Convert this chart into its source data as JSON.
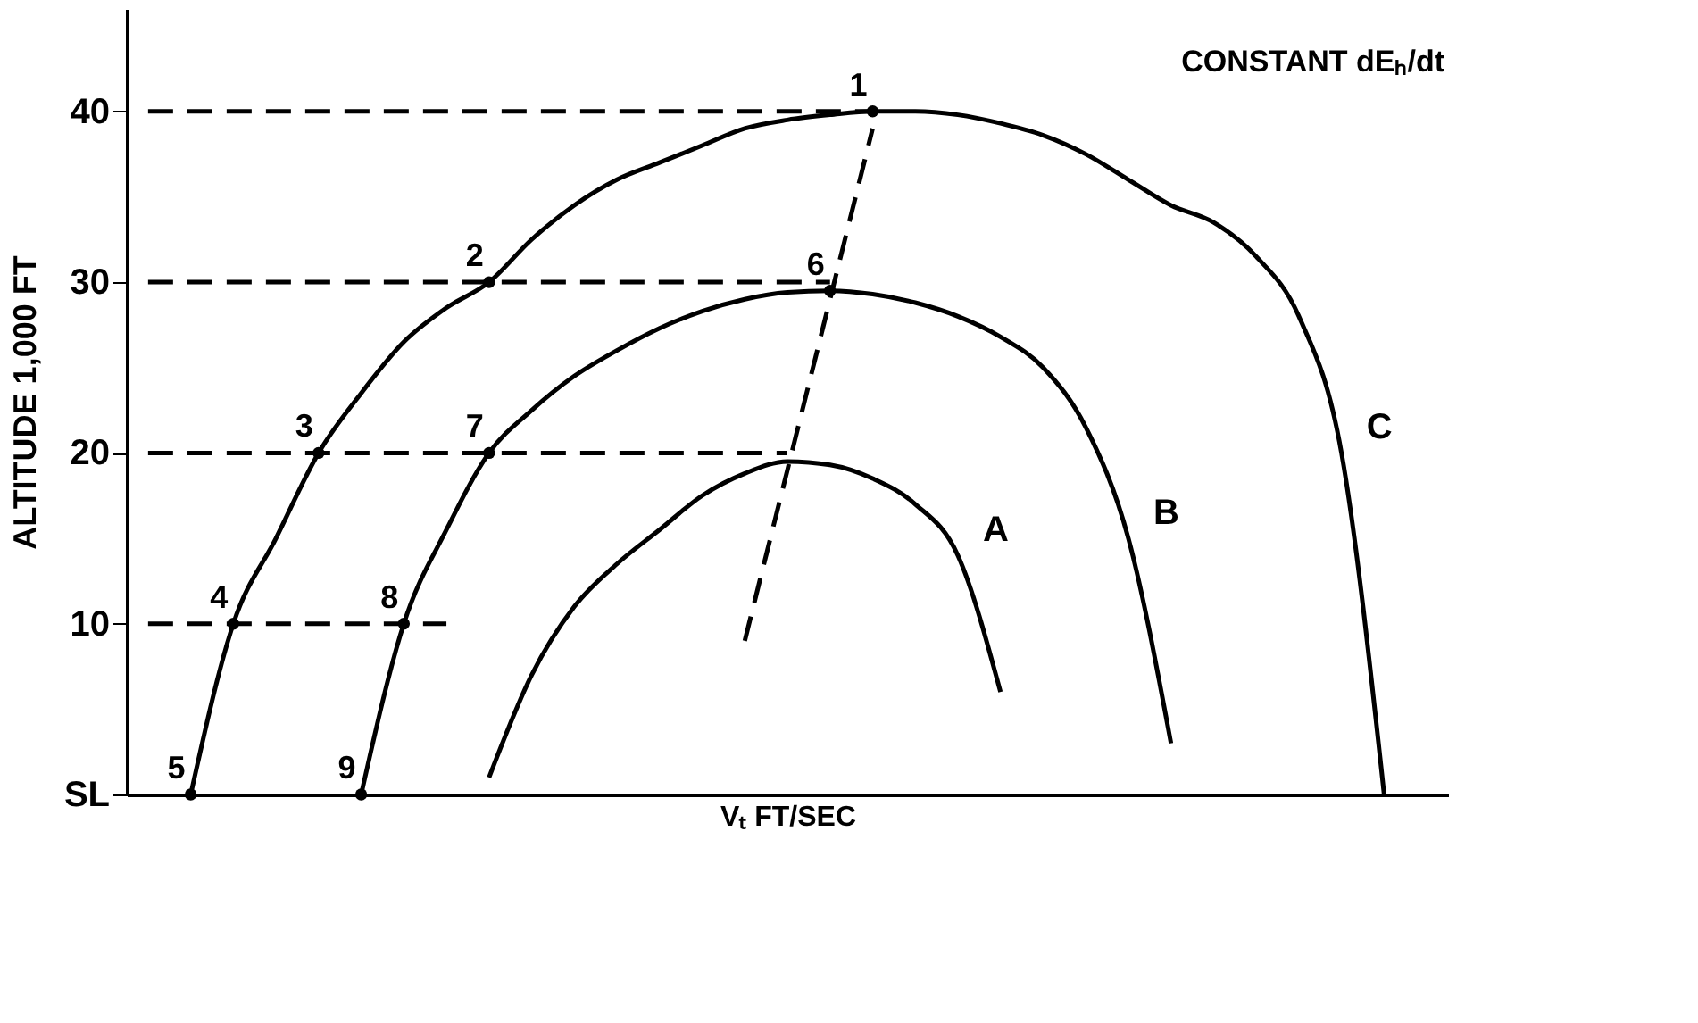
{
  "chart_data": {
    "type": "line",
    "xlabel": "Vₜ FT/SEC",
    "ylabel": "ALTITUDE 1,000 FT",
    "categories": [
      null,
      null,
      null,
      null,
      null,
      null,
      null,
      null,
      null,
      null,
      null,
      null,
      null,
      null,
      null,
      null,
      null,
      null,
      null,
      null,
      null,
      null,
      null,
      null,
      null,
      null,
      null,
      null,
      null,
      null,
      null
    ],
    "ylim": [
      0,
      46
    ],
    "yticks": [
      {
        "value": 0,
        "label": "SL"
      },
      10,
      20,
      30,
      40
    ],
    "grid": false,
    "legend": false,
    "marker": "none",
    "line_style": "solid",
    "annotations": [
      "CONSTANT dEₕ/dt"
    ],
    "series": [
      {
        "name": "A",
        "color": "#000000",
        "values": [
          null,
          null,
          null,
          null,
          null,
          null,
          null,
          null,
          1,
          7,
          11,
          13.5,
          15.5,
          17.5,
          18.8,
          19.5,
          19.3,
          18.5,
          17,
          14,
          6,
          null,
          null,
          null,
          null,
          null,
          null,
          null,
          null,
          null,
          null
        ]
      },
      {
        "name": "B",
        "color": "#000000",
        "values": [
          null,
          null,
          null,
          null,
          null,
          0,
          10,
          15.5,
          20,
          22.5,
          24.5,
          26,
          27.3,
          28.3,
          29,
          29.4,
          29.5,
          29.3,
          28.8,
          28,
          26.8,
          25,
          21.5,
          15,
          3,
          null,
          null,
          null,
          null,
          null,
          null
        ]
      },
      {
        "name": "C",
        "color": "#000000",
        "values": [
          null,
          0,
          10,
          15,
          20,
          23.5,
          26.5,
          28.5,
          30,
          32.5,
          34.5,
          36,
          37,
          38,
          39,
          39.5,
          39.8,
          40,
          40,
          39.8,
          39.3,
          38.6,
          37.5,
          36,
          34.5,
          33.5,
          31.5,
          28,
          20,
          0,
          null
        ]
      },
      {
        "line_style": "dashed",
        "color": "#000000",
        "values": [
          40,
          40,
          40,
          40,
          40,
          40,
          40,
          40,
          40,
          40,
          40,
          40,
          40,
          40,
          40,
          40,
          40,
          40,
          null,
          null,
          null,
          null,
          null,
          null,
          null,
          null,
          null,
          null,
          null,
          null,
          null
        ]
      },
      {
        "line_style": "dashed",
        "color": "#000000",
        "values": [
          30,
          30,
          30,
          30,
          30,
          30,
          30,
          30,
          30,
          30,
          30,
          30,
          30,
          30,
          30,
          30,
          30,
          null,
          null,
          null,
          null,
          null,
          null,
          null,
          null,
          null,
          null,
          null,
          null,
          null,
          null
        ]
      },
      {
        "line_style": "dashed",
        "color": "#000000",
        "values": [
          20,
          20,
          20,
          20,
          20,
          20,
          20,
          20,
          20,
          20,
          20,
          20,
          20,
          20,
          20,
          20,
          null,
          null,
          null,
          null,
          null,
          null,
          null,
          null,
          null,
          null,
          null,
          null,
          null,
          null,
          null
        ]
      },
      {
        "line_style": "dashed",
        "color": "#000000",
        "values": [
          10,
          10,
          10,
          10,
          10,
          10,
          10,
          10,
          null,
          null,
          null,
          null,
          null,
          null,
          null,
          null,
          null,
          null,
          null,
          null,
          null,
          null,
          null,
          null,
          null,
          null,
          null,
          null,
          null,
          null,
          null
        ]
      },
      {
        "line_style": "dashed",
        "color": "#000000",
        "values": [
          null,
          null,
          null,
          null,
          null,
          null,
          null,
          null,
          null,
          null,
          null,
          null,
          null,
          null,
          9,
          19,
          29,
          39,
          null,
          null,
          null,
          null,
          null,
          null,
          null,
          null,
          null,
          null,
          null,
          null,
          null
        ]
      },
      {
        "type": "scatter",
        "marker": "circle",
        "name": "1",
        "color": "#000000",
        "values": [
          null,
          null,
          null,
          null,
          null,
          null,
          null,
          null,
          null,
          null,
          null,
          null,
          null,
          null,
          null,
          null,
          null,
          40,
          null,
          null,
          null,
          null,
          null,
          null,
          null,
          null,
          null,
          null,
          null,
          null,
          null
        ]
      },
      {
        "type": "scatter",
        "marker": "circle",
        "name": "2",
        "color": "#000000",
        "values": [
          null,
          null,
          null,
          null,
          null,
          null,
          null,
          null,
          30,
          null,
          null,
          null,
          null,
          null,
          null,
          null,
          null,
          null,
          null,
          null,
          null,
          null,
          null,
          null,
          null,
          null,
          null,
          null,
          null,
          null,
          null
        ]
      },
      {
        "type": "scatter",
        "marker": "circle",
        "name": "3",
        "color": "#000000",
        "values": [
          null,
          null,
          null,
          null,
          20,
          null,
          null,
          null,
          null,
          null,
          null,
          null,
          null,
          null,
          null,
          null,
          null,
          null,
          null,
          null,
          null,
          null,
          null,
          null,
          null,
          null,
          null,
          null,
          null,
          null,
          null
        ]
      },
      {
        "type": "scatter",
        "marker": "circle",
        "name": "4",
        "color": "#000000",
        "values": [
          null,
          null,
          10,
          null,
          null,
          null,
          null,
          null,
          null,
          null,
          null,
          null,
          null,
          null,
          null,
          null,
          null,
          null,
          null,
          null,
          null,
          null,
          null,
          null,
          null,
          null,
          null,
          null,
          null,
          null,
          null
        ]
      },
      {
        "type": "scatter",
        "marker": "circle",
        "name": "5",
        "color": "#000000",
        "values": [
          null,
          0,
          null,
          null,
          null,
          null,
          null,
          null,
          null,
          null,
          null,
          null,
          null,
          null,
          null,
          null,
          null,
          null,
          null,
          null,
          null,
          null,
          null,
          null,
          null,
          null,
          null,
          null,
          null,
          null,
          null
        ]
      },
      {
        "type": "scatter",
        "marker": "circle",
        "name": "6",
        "color": "#000000",
        "values": [
          null,
          null,
          null,
          null,
          null,
          null,
          null,
          null,
          null,
          null,
          null,
          null,
          null,
          null,
          null,
          null,
          29.5,
          null,
          null,
          null,
          null,
          null,
          null,
          null,
          null,
          null,
          null,
          null,
          null,
          null,
          null
        ]
      },
      {
        "type": "scatter",
        "marker": "circle",
        "name": "7",
        "color": "#000000",
        "values": [
          null,
          null,
          null,
          null,
          null,
          null,
          null,
          null,
          20,
          null,
          null,
          null,
          null,
          null,
          null,
          null,
          null,
          null,
          null,
          null,
          null,
          null,
          null,
          null,
          null,
          null,
          null,
          null,
          null,
          null,
          null
        ]
      },
      {
        "type": "scatter",
        "marker": "circle",
        "name": "8",
        "color": "#000000",
        "values": [
          null,
          null,
          null,
          null,
          null,
          null,
          10,
          null,
          null,
          null,
          null,
          null,
          null,
          null,
          null,
          null,
          null,
          null,
          null,
          null,
          null,
          null,
          null,
          null,
          null,
          null,
          null,
          null,
          null,
          null,
          null
        ]
      },
      {
        "type": "scatter",
        "marker": "circle",
        "name": "9",
        "color": "#000000",
        "values": [
          null,
          null,
          null,
          null,
          null,
          0,
          null,
          null,
          null,
          null,
          null,
          null,
          null,
          null,
          null,
          null,
          null,
          null,
          null,
          null,
          null,
          null,
          null,
          null,
          null,
          null,
          null,
          null,
          null,
          null,
          null
        ]
      }
    ]
  }
}
